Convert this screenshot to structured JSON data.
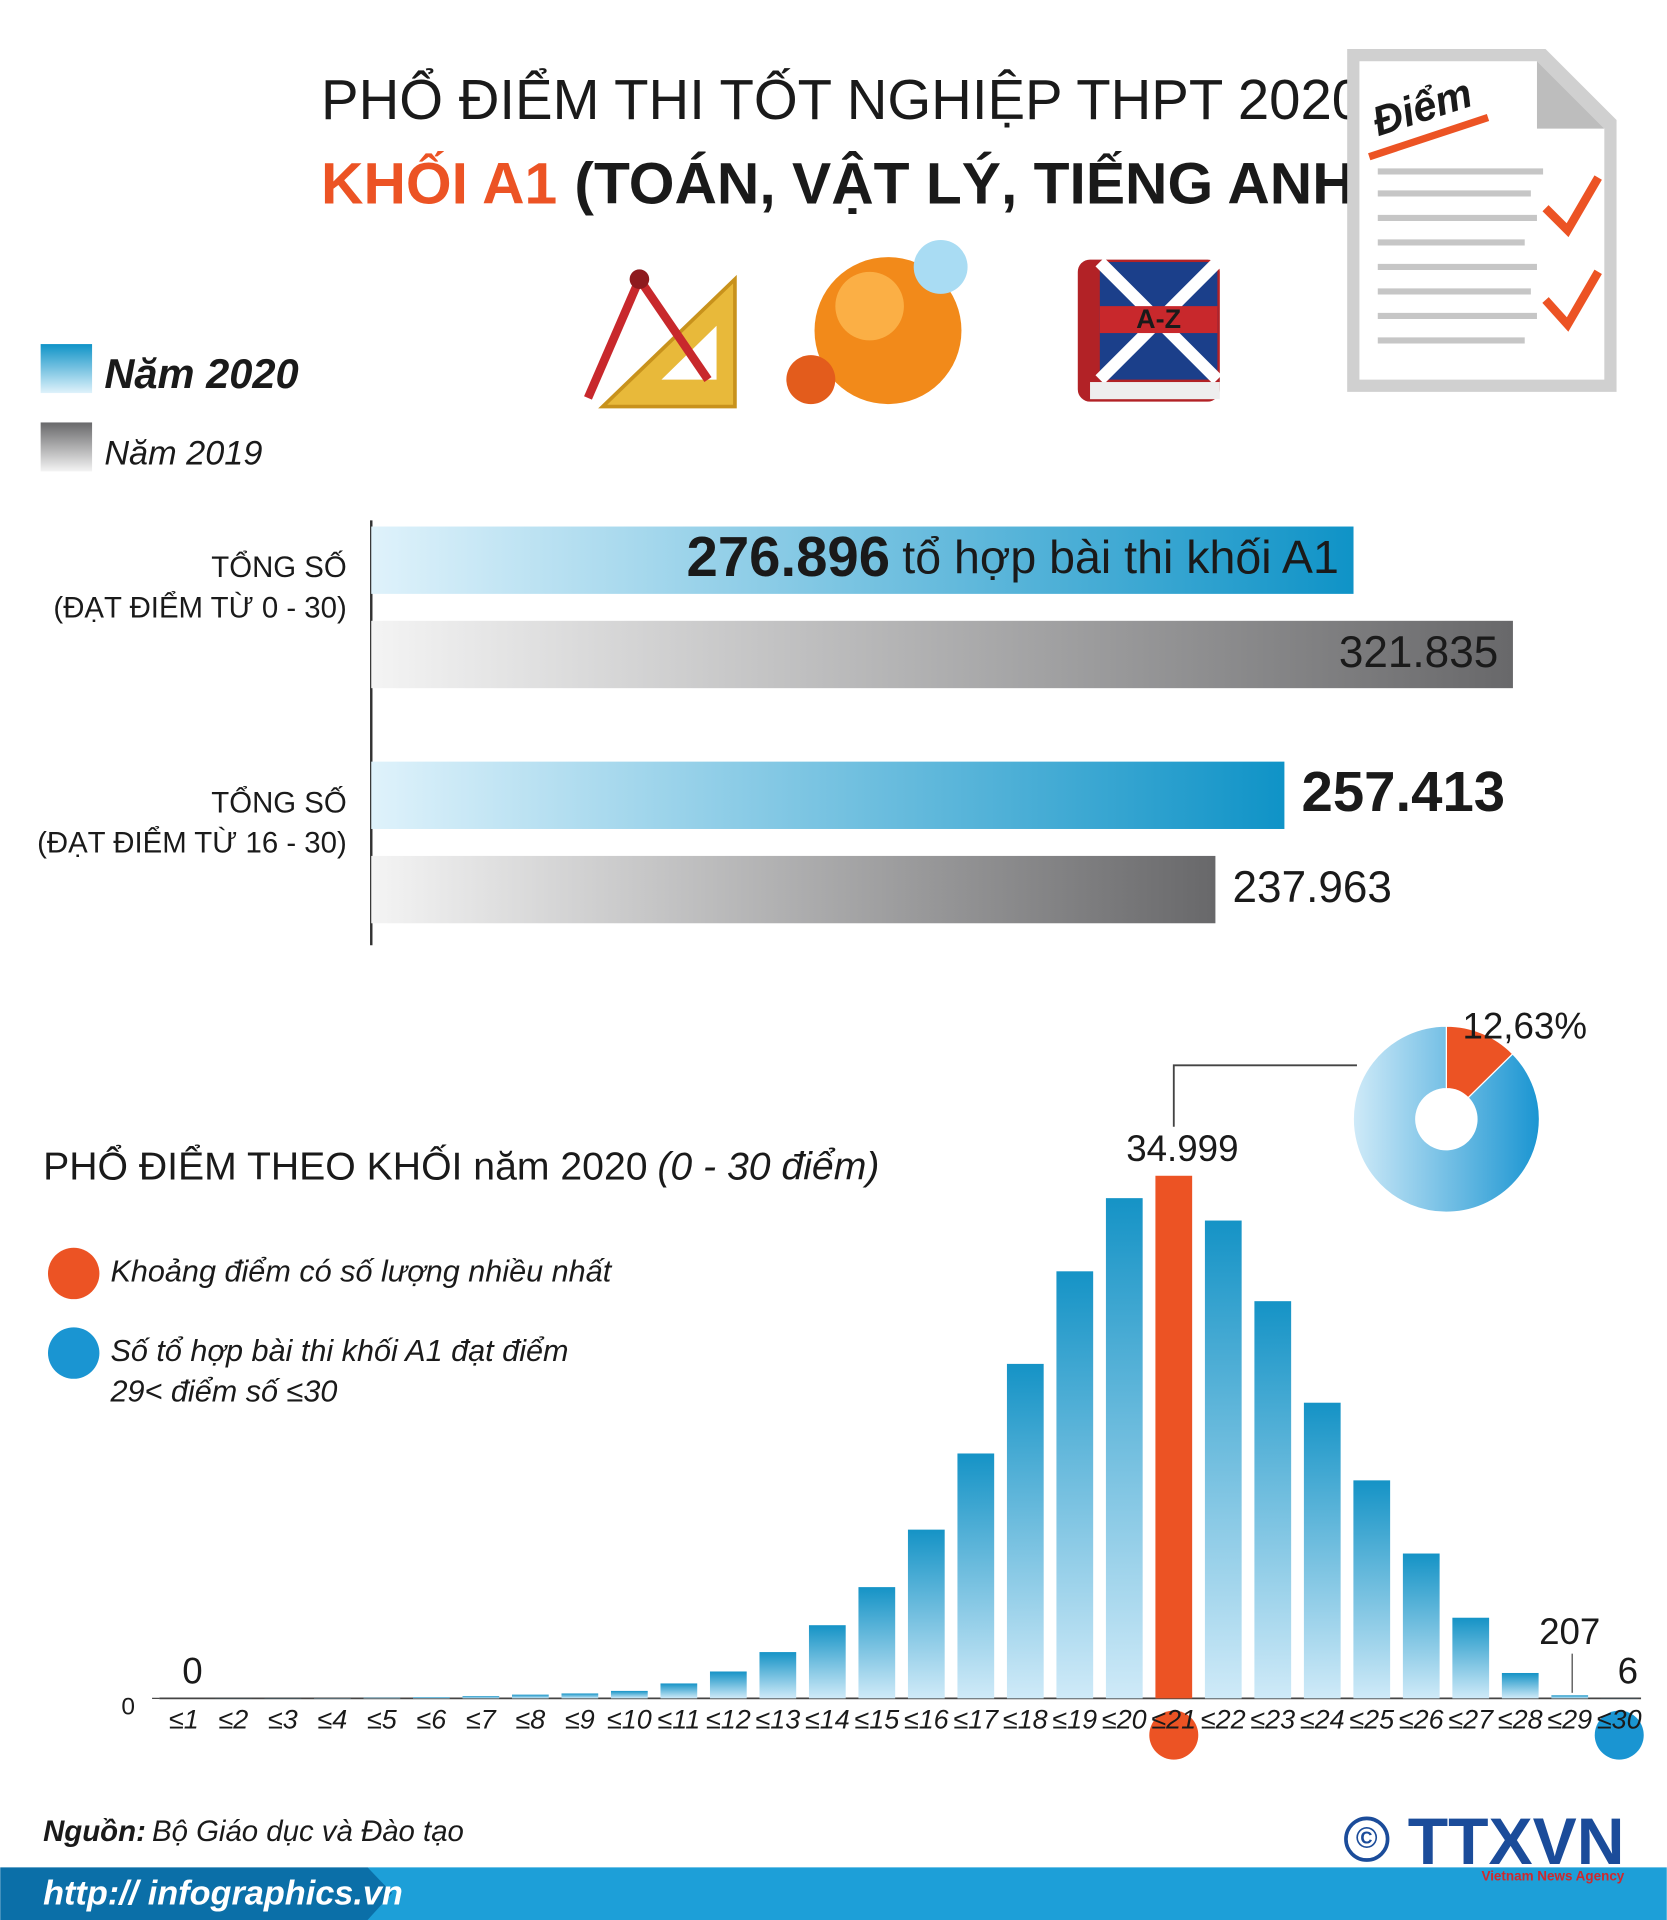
{
  "header": {
    "title": "PHỔ ĐIỂM THI TỐT NGHIỆP THPT 2020",
    "subtitle_highlight": "KHỐI A1",
    "subtitle": "(TOÁN, VẬT LÝ, TIẾNG ANH)"
  },
  "icons": {
    "document_label": "Điểm",
    "book_label": "A-Z"
  },
  "chart_data": [
    {
      "type": "hbar",
      "categories": [
        [
          "TỔNG SỐ",
          "(ĐẠT ĐIỂM TỪ 0 - 30)"
        ],
        [
          "TỔNG SỐ",
          "(ĐẠT ĐIỂM TỪ 16 - 30)"
        ]
      ],
      "series": [
        {
          "name": "Năm 2020",
          "color": "#0f93c7",
          "values": [
            276896,
            257413
          ],
          "value_labels": [
            "276.896",
            "257.413"
          ]
        },
        {
          "name": "Năm 2019",
          "color": "#68686a",
          "values": [
            321835,
            237963
          ],
          "value_labels": [
            "321.835",
            "237.963"
          ]
        }
      ],
      "annotation": "tổ hợp bài thi khối A1",
      "xlim": [
        0,
        340000
      ]
    },
    {
      "type": "bar",
      "title": "PHỔ ĐIỂM THEO KHỐI năm 2020",
      "title_note": "(0 - 30 điểm)",
      "categories": [
        "≤1",
        "≤2",
        "≤3",
        "≤4",
        "≤5",
        "≤6",
        "≤7",
        "≤8",
        "≤9",
        "≤10",
        "≤11",
        "≤12",
        "≤13",
        "≤14",
        "≤15",
        "≤16",
        "≤17",
        "≤18",
        "≤19",
        "≤20",
        "≤21",
        "≤22",
        "≤23",
        "≤24",
        "≤25",
        "≤26",
        "≤27",
        "≤28",
        "≤29",
        "≤30"
      ],
      "values": [
        0,
        5,
        10,
        20,
        40,
        80,
        150,
        250,
        330,
        500,
        1000,
        1800,
        3100,
        4900,
        7450,
        11300,
        16400,
        22400,
        28600,
        33500,
        34999,
        32000,
        26600,
        19800,
        14600,
        9700,
        5400,
        1700,
        207,
        6
      ],
      "value_labels": [
        "0",
        null,
        null,
        null,
        null,
        null,
        null,
        null,
        null,
        null,
        null,
        null,
        null,
        null,
        null,
        null,
        null,
        null,
        null,
        null,
        "34.999",
        null,
        null,
        null,
        null,
        null,
        null,
        null,
        "207",
        "6"
      ],
      "colors": [
        "#1593c6",
        "#1593c6",
        "#1593c6",
        "#1593c6",
        "#1593c6",
        "#1593c6",
        "#1593c6",
        "#1593c6",
        "#1593c6",
        "#1593c6",
        "#1593c6",
        "#1593c6",
        "#1593c6",
        "#1593c6",
        "#1593c6",
        "#1593c6",
        "#1593c6",
        "#1593c6",
        "#1593c6",
        "#1593c6",
        "#ec5324",
        "#1593c6",
        "#1593c6",
        "#1593c6",
        "#1593c6",
        "#1593c6",
        "#1593c6",
        "#1593c6",
        "#1593c6",
        "#1593c6"
      ],
      "ylim": [
        0,
        36000
      ],
      "yticks": [
        0
      ],
      "legend": [
        {
          "label": [
            "Khoảng điểm có số lượng nhiều nhất"
          ],
          "color": "#ec5324"
        },
        {
          "label": [
            "Số tổ hợp bài thi khối A1 đạt điểm",
            "29< điểm số ≤30"
          ],
          "color": "#1a95d2"
        }
      ]
    },
    {
      "type": "pie",
      "values": [
        12.63,
        87.37
      ],
      "value_labels": [
        "12,63%",
        null
      ],
      "colors": [
        "#ec5324",
        "#1a95d2"
      ],
      "hole": true
    }
  ],
  "footer": {
    "source_label": "Nguồn:",
    "source": "Bộ Giáo dục và Đào tạo",
    "url": "http:// infographics.vn",
    "copyright": "©",
    "logo": "TTXVN",
    "logo_subtitle": "Vietnam News Agency"
  }
}
